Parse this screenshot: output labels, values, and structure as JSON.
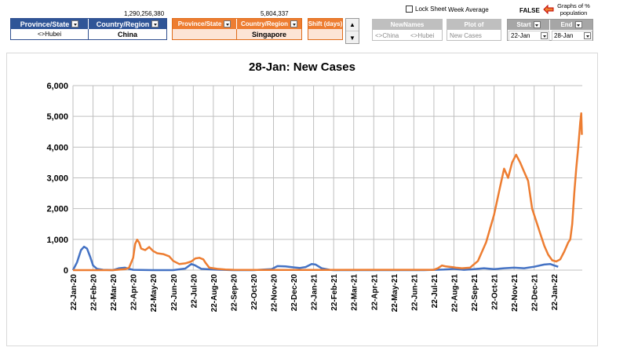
{
  "controls": {
    "pop_left": "1,290,256,380",
    "pop_right": "5,804,337",
    "left": {
      "province_header": "Province/State",
      "country_header": "Country/Region",
      "province_value": "<>Hubei",
      "country_value": "China"
    },
    "right": {
      "province_header": "Province/State",
      "country_header": "Country/Region",
      "province_value": "",
      "country_value": "Singapore"
    },
    "shift": {
      "header": "Shift (days)",
      "value": ""
    },
    "lock_sheet": "Lock Sheet",
    "week_average": "Week Average",
    "newnames": {
      "header": "NewNames",
      "val1": "<>China",
      "val2": "<>Hubei"
    },
    "plot_of": {
      "header": "Plot of",
      "value": "New Cases"
    },
    "false_label": "FALSE",
    "graphs_label": "Graphs of % population",
    "start": {
      "header": "Start",
      "value": "22-Jan"
    },
    "end": {
      "header": "End",
      "value": "28-Jan"
    }
  },
  "colors": {
    "series_blue": "#4472c4",
    "series_orange": "#ed7d31",
    "header_blue": "#2f5597",
    "header_orange": "#ed7d31"
  },
  "chart_data": {
    "type": "line",
    "title": "28-Jan: New Cases",
    "ylim": [
      0,
      6000
    ],
    "yticks": [
      "0",
      "1,000",
      "2,000",
      "3,000",
      "4,000",
      "5,000",
      "6,000"
    ],
    "xtick_labels": [
      "22-Jan-20",
      "22-Feb-20",
      "22-Mar-20",
      "22-Apr-20",
      "22-May-20",
      "22-Jun-20",
      "22-Jul-20",
      "22-Aug-20",
      "22-Sep-20",
      "22-Oct-20",
      "22-Nov-20",
      "22-Dec-20",
      "22-Jan-21",
      "22-Feb-21",
      "22-Mar-21",
      "22-Apr-21",
      "22-May-21",
      "22-Jun-21",
      "22-Jul-21",
      "22-Aug-21",
      "22-Sep-21",
      "22-Oct-21",
      "22-Nov-21",
      "22-Dec-21",
      "22-Jan-22"
    ],
    "grid": true,
    "series": [
      {
        "color": "#4472c4",
        "points": [
          [
            0,
            0
          ],
          [
            0.2,
            250
          ],
          [
            0.4,
            650
          ],
          [
            0.55,
            760
          ],
          [
            0.7,
            700
          ],
          [
            0.85,
            450
          ],
          [
            1,
            150
          ],
          [
            1.2,
            40
          ],
          [
            1.5,
            10
          ],
          [
            2,
            0
          ],
          [
            2.3,
            60
          ],
          [
            2.6,
            80
          ],
          [
            2.8,
            40
          ],
          [
            3,
            10
          ],
          [
            4,
            0
          ],
          [
            5,
            0
          ],
          [
            5.6,
            50
          ],
          [
            5.9,
            200
          ],
          [
            6.1,
            150
          ],
          [
            6.4,
            40
          ],
          [
            7,
            20
          ],
          [
            8,
            0
          ],
          [
            9,
            0
          ],
          [
            9.9,
            30
          ],
          [
            10.2,
            130
          ],
          [
            10.6,
            120
          ],
          [
            11,
            90
          ],
          [
            11.3,
            70
          ],
          [
            11.6,
            100
          ],
          [
            11.9,
            200
          ],
          [
            12.1,
            180
          ],
          [
            12.4,
            60
          ],
          [
            12.8,
            10
          ],
          [
            13,
            0
          ],
          [
            17.5,
            0
          ],
          [
            18.5,
            20
          ],
          [
            19,
            40
          ],
          [
            19.5,
            10
          ],
          [
            20,
            30
          ],
          [
            20.5,
            60
          ],
          [
            21,
            30
          ],
          [
            21.5,
            60
          ],
          [
            22,
            80
          ],
          [
            22.5,
            60
          ],
          [
            23,
            110
          ],
          [
            23.5,
            180
          ],
          [
            23.8,
            200
          ],
          [
            24,
            150
          ],
          [
            24.2,
            110
          ]
        ]
      },
      {
        "color": "#ed7d31",
        "points": [
          [
            0,
            0
          ],
          [
            1,
            0
          ],
          [
            2,
            0
          ],
          [
            2.6,
            30
          ],
          [
            2.8,
            80
          ],
          [
            3.0,
            400
          ],
          [
            3.1,
            850
          ],
          [
            3.2,
            990
          ],
          [
            3.3,
            900
          ],
          [
            3.4,
            700
          ],
          [
            3.6,
            650
          ],
          [
            3.8,
            750
          ],
          [
            4.0,
            620
          ],
          [
            4.2,
            550
          ],
          [
            4.5,
            520
          ],
          [
            4.8,
            450
          ],
          [
            5.0,
            300
          ],
          [
            5.3,
            200
          ],
          [
            5.6,
            220
          ],
          [
            5.9,
            280
          ],
          [
            6.0,
            330
          ],
          [
            6.1,
            380
          ],
          [
            6.3,
            400
          ],
          [
            6.5,
            350
          ],
          [
            6.6,
            250
          ],
          [
            6.8,
            80
          ],
          [
            7.2,
            40
          ],
          [
            7.6,
            20
          ],
          [
            8,
            10
          ],
          [
            9,
            5
          ],
          [
            12,
            5
          ],
          [
            15,
            10
          ],
          [
            18,
            10
          ],
          [
            18.2,
            60
          ],
          [
            18.4,
            150
          ],
          [
            18.6,
            120
          ],
          [
            18.9,
            100
          ],
          [
            19.1,
            80
          ],
          [
            19.4,
            60
          ],
          [
            19.8,
            80
          ],
          [
            20.2,
            300
          ],
          [
            20.6,
            900
          ],
          [
            21.0,
            1800
          ],
          [
            21.3,
            2700
          ],
          [
            21.5,
            3300
          ],
          [
            21.7,
            3000
          ],
          [
            21.9,
            3500
          ],
          [
            22.1,
            3750
          ],
          [
            22.3,
            3500
          ],
          [
            22.5,
            3200
          ],
          [
            22.7,
            2900
          ],
          [
            22.9,
            2000
          ],
          [
            23.1,
            1600
          ],
          [
            23.3,
            1200
          ],
          [
            23.5,
            800
          ],
          [
            23.7,
            500
          ],
          [
            23.9,
            320
          ],
          [
            24.1,
            280
          ],
          [
            24.3,
            350
          ],
          [
            24.5,
            600
          ],
          [
            24.7,
            900
          ],
          [
            24.8,
            1000
          ],
          [
            24.9,
            1500
          ],
          [
            25.0,
            2500
          ],
          [
            25.1,
            3300
          ],
          [
            25.2,
            4000
          ],
          [
            25.3,
            4800
          ],
          [
            25.35,
            5100
          ],
          [
            25.38,
            4400
          ]
        ]
      }
    ]
  }
}
